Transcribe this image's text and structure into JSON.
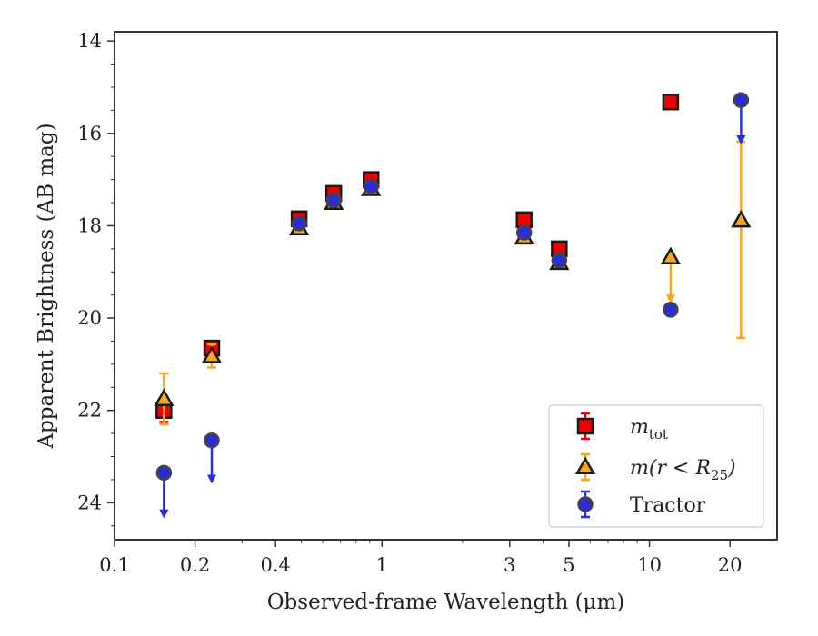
{
  "chart_data": {
    "type": "scatter",
    "xlabel": "Observed-frame Wavelength (μm)",
    "ylabel": "Apparent Brightness (AB mag)",
    "xscale": "log",
    "xlim": [
      0.1,
      30
    ],
    "ylim": [
      24.8,
      13.8
    ],
    "y_inverted": true,
    "x_ticks": [
      0.1,
      0.2,
      0.4,
      1,
      3,
      5,
      10,
      20
    ],
    "x_tick_labels": [
      "0.1",
      "0.2",
      "0.4",
      "1",
      "3",
      "5",
      "10",
      "20"
    ],
    "y_ticks": [
      14,
      16,
      18,
      20,
      22,
      24
    ],
    "y_tick_labels": [
      "14",
      "16",
      "18",
      "20",
      "22",
      "24"
    ],
    "grid": false,
    "legend_position": "lower-right",
    "series": [
      {
        "name": "m_tot",
        "legend_label": "m",
        "legend_sub": "tot",
        "marker": "square",
        "fill": "#ee0000",
        "errcolor": "#ee0000",
        "points": [
          {
            "x": 0.153,
            "y": 22.0,
            "err": 0.25
          },
          {
            "x": 0.231,
            "y": 20.65,
            "err": 0.1
          },
          {
            "x": 0.49,
            "y": 17.85,
            "err": 0.1
          },
          {
            "x": 0.66,
            "y": 17.3,
            "err": 0.08
          },
          {
            "x": 0.91,
            "y": 17.0,
            "err": 0.08
          },
          {
            "x": 3.4,
            "y": 17.87,
            "err": 0.08
          },
          {
            "x": 4.6,
            "y": 18.5,
            "err": 0.08
          },
          {
            "x": 12.0,
            "y": 15.32,
            "err": 0.06
          }
        ]
      },
      {
        "name": "m(r<R_25)",
        "legend_label": "m(r < R",
        "legend_sub": "25",
        "legend_suffix": ")",
        "marker": "triangle",
        "fill": "#f5a81c",
        "errcolor": "#f5a81c",
        "points": [
          {
            "x": 0.153,
            "y": 21.75,
            "err_low": 0.55,
            "err_high": 0.55
          },
          {
            "x": 0.231,
            "y": 20.82,
            "err_low": 0.25,
            "err_high": 0.25
          },
          {
            "x": 0.49,
            "y": 18.05,
            "err_low": 0.05,
            "err_high": 0.05
          },
          {
            "x": 0.66,
            "y": 17.5,
            "err_low": 0.05,
            "err_high": 0.05
          },
          {
            "x": 0.91,
            "y": 17.2,
            "err_low": 0.05,
            "err_high": 0.05
          },
          {
            "x": 3.4,
            "y": 18.25,
            "err_low": 0.05,
            "err_high": 0.05
          },
          {
            "x": 4.6,
            "y": 18.8,
            "err_low": 0.05,
            "err_high": 0.05
          },
          {
            "x": 12.0,
            "y": 18.68,
            "upper_limit": true,
            "arrow_to": 19.65
          },
          {
            "x": 22.0,
            "y": 17.88,
            "err_low": 2.55,
            "err_high": 1.7
          }
        ]
      },
      {
        "name": "Tractor",
        "legend_label": "Tractor",
        "marker": "circle",
        "fill": "#2b2bd9",
        "errcolor": "#2b2be6",
        "points": [
          {
            "x": 0.153,
            "y": 23.35,
            "upper_limit": true,
            "arrow_to": 24.3
          },
          {
            "x": 0.231,
            "y": 22.65,
            "upper_limit": true,
            "arrow_to": 23.55
          },
          {
            "x": 0.49,
            "y": 17.95,
            "err": 0.05
          },
          {
            "x": 0.66,
            "y": 17.45,
            "err": 0.05
          },
          {
            "x": 0.91,
            "y": 17.15,
            "err": 0.05
          },
          {
            "x": 3.4,
            "y": 18.15,
            "err": 0.05
          },
          {
            "x": 4.6,
            "y": 18.75,
            "err": 0.05
          },
          {
            "x": 12.0,
            "y": 19.82,
            "err": 0.05
          },
          {
            "x": 22.0,
            "y": 15.28,
            "upper_limit": true,
            "arrow_to": 16.2
          }
        ]
      }
    ]
  }
}
